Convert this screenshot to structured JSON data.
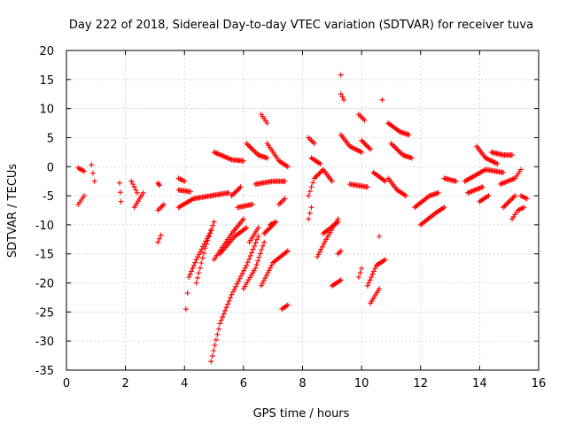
{
  "chart_data": {
    "type": "scatter",
    "title": "Day 222 of 2018, Sidereal Day-to-day VTEC variation (SDTVAR) for receiver tuva",
    "xlabel": "GPS time / hours",
    "ylabel": "SDTVAR / TECUs",
    "xlim": [
      0,
      16
    ],
    "ylim": [
      -35,
      20
    ],
    "xticks": [
      0,
      2,
      4,
      6,
      8,
      10,
      12,
      14,
      16
    ],
    "yticks": [
      -35,
      -30,
      -25,
      -20,
      -15,
      -10,
      -5,
      0,
      5,
      10,
      15,
      20
    ],
    "xtick_labels": [
      "0",
      "2",
      "4",
      "6",
      "8",
      "10",
      "12",
      "14",
      "16"
    ],
    "ytick_labels": [
      "-35",
      "-30",
      "-25",
      "-20",
      "-15",
      "-10",
      "-5",
      "0",
      "5",
      "10",
      "15",
      "20"
    ],
    "grid": true,
    "marker": "plus",
    "color": "#ff0000",
    "series": [
      {
        "tracks": [
          [
            [
              0.4,
              -0.2
            ],
            [
              0.6,
              -0.8
            ]
          ],
          [
            [
              0.4,
              -6.5
            ],
            [
              0.6,
              -5.0
            ]
          ],
          [
            [
              0.85,
              0.3
            ],
            [
              0.95,
              -2.5
            ]
          ],
          [
            [
              1.8,
              -2.8
            ],
            [
              1.85,
              -6.0
            ]
          ],
          [
            [
              2.2,
              -2.5
            ],
            [
              2.4,
              -4.5
            ]
          ],
          [
            [
              2.3,
              -7.0
            ],
            [
              2.6,
              -4.5
            ]
          ],
          [
            [
              3.1,
              -2.8
            ],
            [
              3.15,
              -3.2
            ]
          ],
          [
            [
              3.1,
              -7.5
            ],
            [
              3.3,
              -6.5
            ]
          ],
          [
            [
              3.1,
              -13.0
            ],
            [
              3.2,
              -11.8
            ]
          ],
          [
            [
              3.8,
              -2.0
            ],
            [
              4.0,
              -2.5
            ]
          ],
          [
            [
              3.8,
              -4.0
            ],
            [
              4.2,
              -4.3
            ]
          ],
          [
            [
              3.8,
              -7.0
            ],
            [
              4.3,
              -5.5
            ],
            [
              5.5,
              -4.5
            ]
          ],
          [
            [
              4.05,
              -24.5
            ],
            [
              4.15,
              -19.0
            ],
            [
              4.4,
              -16.0
            ],
            [
              4.9,
              -11.0
            ]
          ],
          [
            [
              4.4,
              -20.0
            ],
            [
              4.7,
              -14.0
            ],
            [
              5.0,
              -9.5
            ]
          ],
          [
            [
              4.9,
              -33.5
            ],
            [
              5.2,
              -27.0
            ],
            [
              5.6,
              -22.0
            ],
            [
              6.1,
              -17.0
            ],
            [
              6.5,
              -12.0
            ]
          ],
          [
            [
              5.0,
              2.5
            ],
            [
              5.6,
              1.2
            ],
            [
              6.0,
              1.0
            ]
          ],
          [
            [
              5.0,
              -16.0
            ],
            [
              5.6,
              -11.5
            ],
            [
              6.0,
              -9.0
            ]
          ],
          [
            [
              5.2,
              -15.0
            ],
            [
              5.7,
              -12.0
            ],
            [
              6.1,
              -10.5
            ]
          ],
          [
            [
              5.6,
              -5.0
            ],
            [
              5.9,
              -3.5
            ]
          ],
          [
            [
              5.8,
              -7.0
            ],
            [
              6.3,
              -6.5
            ]
          ],
          [
            [
              6.0,
              -21.0
            ],
            [
              6.4,
              -17.5
            ],
            [
              6.7,
              -13.0
            ]
          ],
          [
            [
              6.1,
              4.0
            ],
            [
              6.5,
              2.0
            ],
            [
              6.8,
              1.5
            ]
          ],
          [
            [
              6.2,
              -13.0
            ],
            [
              6.5,
              -10.5
            ]
          ],
          [
            [
              6.4,
              -3.0
            ],
            [
              7.0,
              -2.5
            ],
            [
              7.4,
              -2.5
            ]
          ],
          [
            [
              6.6,
              9.0
            ],
            [
              6.8,
              7.5
            ]
          ],
          [
            [
              6.6,
              -20.5
            ],
            [
              7.0,
              -16.5
            ],
            [
              7.5,
              -14.5
            ]
          ],
          [
            [
              6.7,
              -11.5
            ],
            [
              7.0,
              -10.0
            ]
          ],
          [
            [
              6.8,
              4.0
            ],
            [
              7.2,
              1.0
            ],
            [
              7.5,
              0.0
            ]
          ],
          [
            [
              6.9,
              -10.0
            ],
            [
              7.1,
              -9.5
            ]
          ],
          [
            [
              7.2,
              -6.5
            ],
            [
              7.4,
              -5.5
            ]
          ],
          [
            [
              7.3,
              -24.5
            ],
            [
              7.5,
              -23.8
            ]
          ],
          [
            [
              8.2,
              -9.0
            ],
            [
              8.3,
              -7.0
            ]
          ],
          [
            [
              8.2,
              5.0
            ],
            [
              8.4,
              4.0
            ]
          ],
          [
            [
              8.2,
              -5.0
            ],
            [
              8.4,
              -2.0
            ],
            [
              8.7,
              -0.5
            ],
            [
              9.0,
              -2.5
            ]
          ],
          [
            [
              8.3,
              1.5
            ],
            [
              8.6,
              0.5
            ]
          ],
          [
            [
              8.5,
              -15.5
            ],
            [
              8.8,
              -12.5
            ],
            [
              9.2,
              -9.0
            ]
          ],
          [
            [
              8.7,
              -11.5
            ],
            [
              9.2,
              -9.5
            ]
          ],
          [
            [
              9.0,
              -20.5
            ],
            [
              9.3,
              -19.5
            ]
          ],
          [
            [
              9.2,
              -15.0
            ],
            [
              9.3,
              -14.5
            ]
          ],
          [
            [
              9.3,
              12.5
            ],
            [
              9.4,
              11.5
            ]
          ],
          [
            [
              9.3,
              15.8
            ]
          ],
          [
            [
              9.3,
              5.5
            ],
            [
              9.6,
              3.5
            ],
            [
              10.0,
              2.5
            ]
          ],
          [
            [
              9.6,
              -3.0
            ],
            [
              10.2,
              -3.5
            ]
          ],
          [
            [
              9.9,
              9.0
            ],
            [
              10.1,
              8.0
            ]
          ],
          [
            [
              9.9,
              -19.0
            ],
            [
              10.0,
              -17.5
            ]
          ],
          [
            [
              10.0,
              4.5
            ],
            [
              10.3,
              3.0
            ]
          ],
          [
            [
              10.2,
              -20.5
            ],
            [
              10.5,
              -17.0
            ],
            [
              10.8,
              -16.0
            ]
          ],
          [
            [
              10.3,
              -23.5
            ],
            [
              10.6,
              -21.0
            ]
          ],
          [
            [
              10.4,
              -1.0
            ],
            [
              10.8,
              -2.5
            ]
          ],
          [
            [
              10.6,
              -12.0
            ]
          ],
          [
            [
              10.7,
              11.5
            ]
          ],
          [
            [
              10.9,
              -2.0
            ],
            [
              11.2,
              -4.0
            ],
            [
              11.5,
              -5.0
            ]
          ],
          [
            [
              10.9,
              7.5
            ],
            [
              11.3,
              6.0
            ],
            [
              11.6,
              5.5
            ]
          ],
          [
            [
              11.0,
              4.0
            ],
            [
              11.4,
              2.0
            ],
            [
              11.7,
              1.5
            ]
          ],
          [
            [
              11.8,
              -7.0
            ],
            [
              12.3,
              -5.0
            ],
            [
              12.6,
              -4.5
            ]
          ],
          [
            [
              12.0,
              -10.0
            ],
            [
              12.5,
              -8.0
            ],
            [
              12.8,
              -7.0
            ]
          ],
          [
            [
              12.8,
              -2.0
            ],
            [
              13.2,
              -2.5
            ]
          ],
          [
            [
              13.5,
              -2.5
            ],
            [
              14.2,
              -0.5
            ],
            [
              14.8,
              -1.0
            ]
          ],
          [
            [
              13.6,
              -4.5
            ],
            [
              14.1,
              -3.5
            ]
          ],
          [
            [
              13.9,
              3.5
            ],
            [
              14.2,
              1.5
            ],
            [
              14.6,
              0.5
            ]
          ],
          [
            [
              14.0,
              -6.0
            ],
            [
              14.3,
              -5.0
            ]
          ],
          [
            [
              14.4,
              2.5
            ],
            [
              14.8,
              2.0
            ],
            [
              15.1,
              2.0
            ]
          ],
          [
            [
              14.7,
              -3.0
            ],
            [
              15.2,
              -2.0
            ],
            [
              15.4,
              -0.5
            ]
          ],
          [
            [
              14.8,
              -7.0
            ],
            [
              15.2,
              -5.0
            ]
          ],
          [
            [
              15.1,
              -9.0
            ],
            [
              15.3,
              -7.5
            ],
            [
              15.5,
              -7.0
            ]
          ],
          [
            [
              15.4,
              -5.0
            ],
            [
              15.6,
              -5.5
            ]
          ]
        ]
      }
    ]
  }
}
